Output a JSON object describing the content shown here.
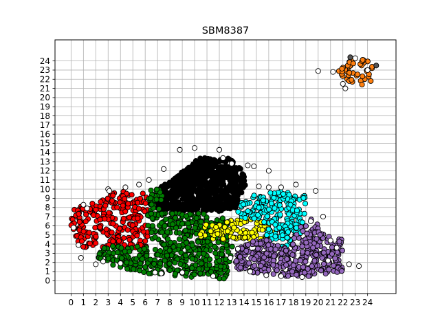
{
  "chart_data": {
    "type": "scatter",
    "title": "SBM8387",
    "xlabel": "",
    "ylabel": "",
    "xlim": [
      -1.3,
      26.3
    ],
    "ylim": [
      -1.4,
      26.3
    ],
    "x_ticks": [
      0,
      1,
      2,
      3,
      4,
      5,
      6,
      7,
      8,
      9,
      10,
      11,
      12,
      13,
      14,
      15,
      16,
      17,
      18,
      19,
      20,
      21,
      22,
      23,
      24
    ],
    "y_ticks": [
      0,
      1,
      2,
      3,
      4,
      5,
      6,
      7,
      8,
      9,
      10,
      11,
      12,
      13,
      14,
      15,
      16,
      17,
      18,
      19,
      20,
      21,
      22,
      23,
      24
    ],
    "grid": true,
    "marker": "circle",
    "marker_edge_color": "#000000",
    "clusters": [
      {
        "color": "#000000",
        "x_range": [
          7,
          14.2
        ],
        "y_range": [
          7.5,
          13.5
        ],
        "approx_points": 700
      },
      {
        "color": "#ff0000",
        "x_range": [
          0,
          6.2
        ],
        "y_range": [
          3.5,
          9.8
        ],
        "approx_points": 260
      },
      {
        "color": "#008000",
        "x_range": [
          1.5,
          13.5
        ],
        "y_range": [
          0,
          10.5
        ],
        "approx_points": 520
      },
      {
        "color": "#ffff00",
        "x_range": [
          10,
          17
        ],
        "y_range": [
          4.5,
          7
        ],
        "approx_points": 110
      },
      {
        "color": "#00ffff",
        "x_range": [
          13.5,
          19.5
        ],
        "y_range": [
          3.5,
          10
        ],
        "approx_points": 230
      },
      {
        "color": "#9467bd",
        "x_range": [
          13,
          22
        ],
        "y_range": [
          0.5,
          7.5
        ],
        "approx_points": 420
      },
      {
        "color": "#ff7f0e",
        "x_range": [
          21.5,
          24.8
        ],
        "y_range": [
          21,
          24.5
        ],
        "approx_points": 45
      },
      {
        "color": "#ffffff",
        "role": "outliers",
        "approx_points": 70
      }
    ]
  }
}
